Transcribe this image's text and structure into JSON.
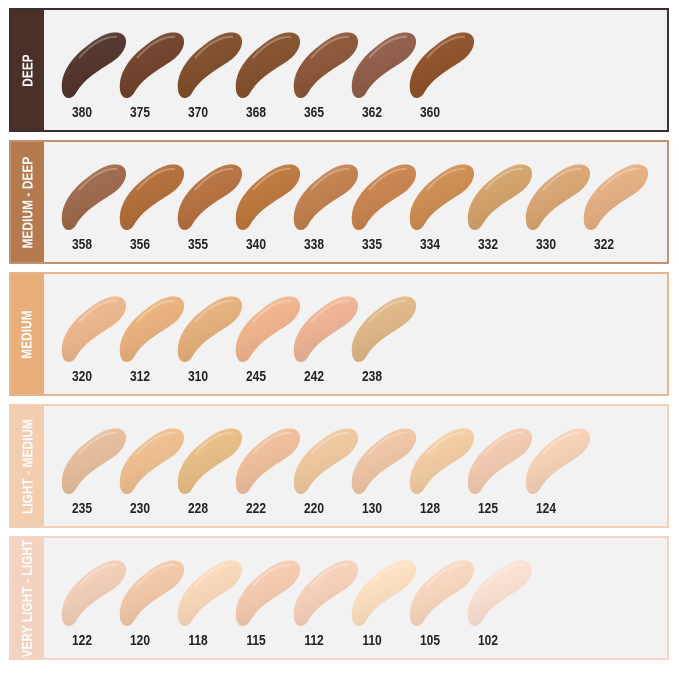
{
  "panels": [
    {
      "label": "DEEP",
      "bar_color": "#4a3028",
      "border_color": "#3a3030",
      "shades": [
        {
          "code": "380",
          "color": "#4e3027"
        },
        {
          "code": "375",
          "color": "#6e3e27"
        },
        {
          "code": "370",
          "color": "#7d4a26"
        },
        {
          "code": "368",
          "color": "#834d29"
        },
        {
          "code": "365",
          "color": "#8a5233"
        },
        {
          "code": "362",
          "color": "#8e5a45"
        },
        {
          "code": "360",
          "color": "#8c4e24"
        }
      ]
    },
    {
      "label": "MEDIUM - DEEP",
      "bar_color": "#b57a4e",
      "border_color": "#c49072",
      "shades": [
        {
          "code": "358",
          "color": "#9c6547"
        },
        {
          "code": "356",
          "color": "#b06a33"
        },
        {
          "code": "355",
          "color": "#b56e3c"
        },
        {
          "code": "340",
          "color": "#bb7538"
        },
        {
          "code": "338",
          "color": "#c27d4a"
        },
        {
          "code": "335",
          "color": "#c8814a"
        },
        {
          "code": "334",
          "color": "#cc8b4d"
        },
        {
          "code": "332",
          "color": "#d3a067"
        },
        {
          "code": "330",
          "color": "#d8a46f"
        },
        {
          "code": "322",
          "color": "#e5ad7f"
        }
      ]
    },
    {
      "label": "MEDIUM",
      "bar_color": "#e8ae7c",
      "border_color": "#e8b48c",
      "shades": [
        {
          "code": "320",
          "color": "#ecb58a"
        },
        {
          "code": "312",
          "color": "#e9b07a"
        },
        {
          "code": "310",
          "color": "#e5ae78"
        },
        {
          "code": "245",
          "color": "#f0b28a"
        },
        {
          "code": "242",
          "color": "#eeb292"
        },
        {
          "code": "238",
          "color": "#dfb584"
        }
      ]
    },
    {
      "label": "LIGHT - MEDIUM",
      "bar_color": "#f3cdb0",
      "border_color": "#f3cfb6",
      "shades": [
        {
          "code": "235",
          "color": "#e6bc9a"
        },
        {
          "code": "230",
          "color": "#eebd8c"
        },
        {
          "code": "228",
          "color": "#e8bc82"
        },
        {
          "code": "222",
          "color": "#efbd99"
        },
        {
          "code": "220",
          "color": "#eec79c"
        },
        {
          "code": "130",
          "color": "#efc4a3"
        },
        {
          "code": "128",
          "color": "#f2cba0"
        },
        {
          "code": "125",
          "color": "#f2c9ae"
        },
        {
          "code": "124",
          "color": "#f6d0b3"
        }
      ]
    },
    {
      "label": "VERY LIGHT - LIGHT",
      "bar_color": "#f4d2c0",
      "border_color": "#f4d4c4",
      "shades": [
        {
          "code": "122",
          "color": "#f2cdb6"
        },
        {
          "code": "120",
          "color": "#f2c7a5"
        },
        {
          "code": "118",
          "color": "#fad8b8"
        },
        {
          "code": "115",
          "color": "#f6c9ad"
        },
        {
          "code": "112",
          "color": "#f7d0b8"
        },
        {
          "code": "110",
          "color": "#fde0c0"
        },
        {
          "code": "105",
          "color": "#f9d6be"
        },
        {
          "code": "102",
          "color": "#fbe0d2"
        }
      ]
    }
  ]
}
